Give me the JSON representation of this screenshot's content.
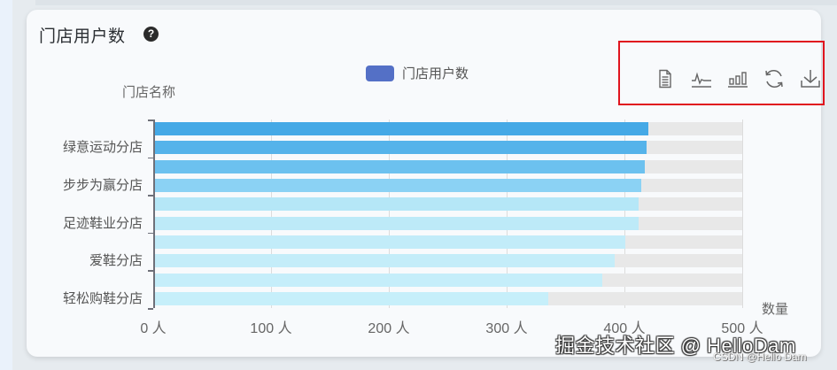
{
  "card": {
    "title": "门店用户数",
    "help_icon": "question-circle-icon",
    "help_glyph": "?"
  },
  "toolbox": {
    "items": [
      {
        "name": "data-view",
        "icon": "document-icon"
      },
      {
        "name": "switch-line",
        "icon": "line-chart-icon"
      },
      {
        "name": "switch-bar",
        "icon": "bar-chart-icon"
      },
      {
        "name": "restore",
        "icon": "refresh-icon"
      },
      {
        "name": "save-as-image",
        "icon": "download-icon"
      }
    ],
    "highlight_color": "#e0141e"
  },
  "chart_data": {
    "type": "bar",
    "orientation": "horizontal",
    "title": "门店用户数",
    "legend": [
      "门店用户数"
    ],
    "legend_color": "#5470c6",
    "ylabel": "门店名称",
    "xlabel": "数量",
    "x_ticks": [
      "0 人",
      "100 人",
      "200 人",
      "300 人",
      "400 人",
      "500 人"
    ],
    "xlim": [
      0,
      500
    ],
    "y_visible_labels": [
      "绿意运动分店",
      "步步为赢分店",
      "足迹鞋业分店",
      "爱鞋分店",
      "轻松购鞋分店"
    ],
    "categories": [
      "",
      "绿意运动分店",
      "",
      "步步为赢分店",
      "",
      "足迹鞋业分店",
      "",
      "爱鞋分店",
      "",
      "轻松购鞋分店"
    ],
    "values": [
      420,
      419,
      417,
      414,
      412,
      412,
      401,
      392,
      381,
      335
    ],
    "bar_colors": [
      "#45a9e6",
      "#55b3ea",
      "#6cc1ef",
      "#8bd2f4",
      "#b5e7f7",
      "#bdeaf8",
      "#c2ecf9",
      "#c4edf9",
      "#c5eefa",
      "#c6effa"
    ],
    "background_bar": true,
    "background_bar_color": "#e8e8e8",
    "grid": true
  },
  "watermark": {
    "main": "掘金技术社区 @ HelloDam",
    "sub": "CSDN @Hello Dam"
  }
}
